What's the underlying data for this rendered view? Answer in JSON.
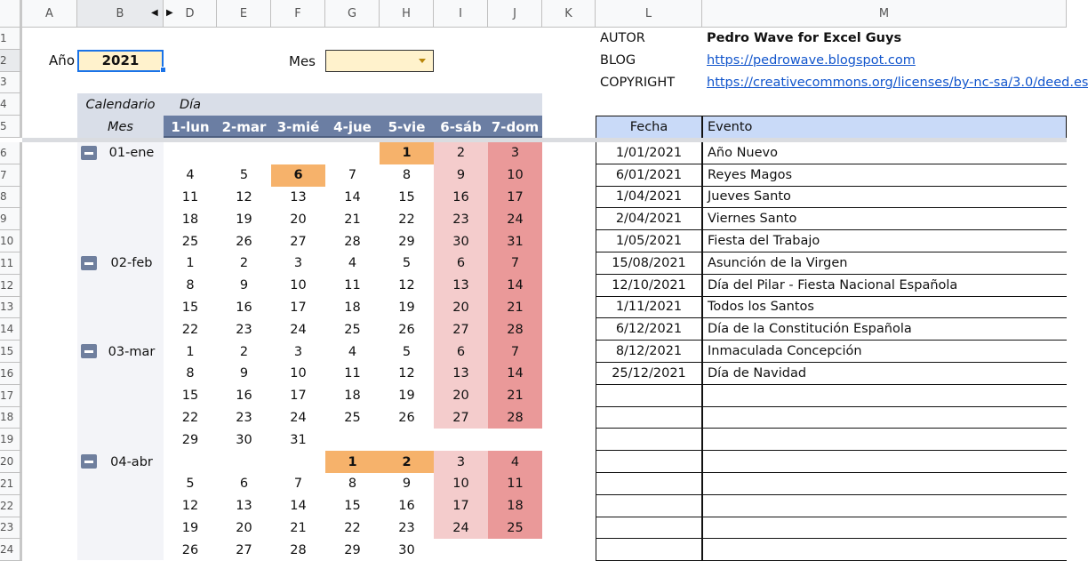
{
  "columns": [
    "A",
    "B",
    "D",
    "E",
    "F",
    "G",
    "H",
    "I",
    "J",
    "K",
    "L",
    "M"
  ],
  "rows": [
    "1",
    "2",
    "3",
    "4",
    "5",
    "6",
    "7",
    "8",
    "9",
    "10",
    "11",
    "12",
    "13",
    "14",
    "15",
    "16",
    "17",
    "18",
    "19",
    "20",
    "21",
    "22",
    "23",
    "24"
  ],
  "controls": {
    "year_label": "Año",
    "year_value": "2021",
    "month_label": "Mes",
    "month_value": ""
  },
  "calendar": {
    "header_left_top": "Calendario",
    "header_left_bottom": "Mes",
    "header_day": "Día",
    "weekdays": [
      "1-lun",
      "2-mar",
      "3-mié",
      "4-jue",
      "5-vie",
      "6-sáb",
      "7-dom"
    ],
    "rows": [
      {
        "month": "01-ene",
        "days": [
          "",
          "",
          "",
          "",
          "1",
          "2",
          "3"
        ],
        "holidays": [
          "1"
        ]
      },
      {
        "month": "",
        "days": [
          "4",
          "5",
          "6",
          "7",
          "8",
          "9",
          "10"
        ],
        "holidays": [
          "6"
        ]
      },
      {
        "month": "",
        "days": [
          "11",
          "12",
          "13",
          "14",
          "15",
          "16",
          "17"
        ],
        "holidays": []
      },
      {
        "month": "",
        "days": [
          "18",
          "19",
          "20",
          "21",
          "22",
          "23",
          "24"
        ],
        "holidays": []
      },
      {
        "month": "",
        "days": [
          "25",
          "26",
          "27",
          "28",
          "29",
          "30",
          "31"
        ],
        "holidays": []
      },
      {
        "month": "02-feb",
        "days": [
          "1",
          "2",
          "3",
          "4",
          "5",
          "6",
          "7"
        ],
        "holidays": []
      },
      {
        "month": "",
        "days": [
          "8",
          "9",
          "10",
          "11",
          "12",
          "13",
          "14"
        ],
        "holidays": []
      },
      {
        "month": "",
        "days": [
          "15",
          "16",
          "17",
          "18",
          "19",
          "20",
          "21"
        ],
        "holidays": []
      },
      {
        "month": "",
        "days": [
          "22",
          "23",
          "24",
          "25",
          "26",
          "27",
          "28"
        ],
        "holidays": []
      },
      {
        "month": "03-mar",
        "days": [
          "1",
          "2",
          "3",
          "4",
          "5",
          "6",
          "7"
        ],
        "holidays": []
      },
      {
        "month": "",
        "days": [
          "8",
          "9",
          "10",
          "11",
          "12",
          "13",
          "14"
        ],
        "holidays": []
      },
      {
        "month": "",
        "days": [
          "15",
          "16",
          "17",
          "18",
          "19",
          "20",
          "21"
        ],
        "holidays": []
      },
      {
        "month": "",
        "days": [
          "22",
          "23",
          "24",
          "25",
          "26",
          "27",
          "28"
        ],
        "holidays": []
      },
      {
        "month": "",
        "days": [
          "29",
          "30",
          "31",
          "",
          "",
          "",
          ""
        ],
        "holidays": []
      },
      {
        "month": "04-abr",
        "days": [
          "",
          "",
          "",
          "1",
          "2",
          "3",
          "4"
        ],
        "holidays": [
          "1",
          "2"
        ]
      },
      {
        "month": "",
        "days": [
          "5",
          "6",
          "7",
          "8",
          "9",
          "10",
          "11"
        ],
        "holidays": []
      },
      {
        "month": "",
        "days": [
          "12",
          "13",
          "14",
          "15",
          "16",
          "17",
          "18"
        ],
        "holidays": []
      },
      {
        "month": "",
        "days": [
          "19",
          "20",
          "21",
          "22",
          "23",
          "24",
          "25"
        ],
        "holidays": []
      },
      {
        "month": "",
        "days": [
          "26",
          "27",
          "28",
          "29",
          "30",
          "",
          ""
        ],
        "holidays": []
      }
    ]
  },
  "info": {
    "author_label": "AUTOR",
    "author_value": "Pedro Wave for Excel Guys",
    "blog_label": "BLOG",
    "blog_value": "https://pedrowave.blogspot.com",
    "copyright_label": "COPYRIGHT",
    "copyright_value": "https://creativecommons.org/licenses/by-nc-sa/3.0/deed.es"
  },
  "events": {
    "headers": [
      "Fecha",
      "Evento"
    ],
    "rows": [
      [
        "1/01/2021",
        "Año Nuevo"
      ],
      [
        "6/01/2021",
        "Reyes Magos"
      ],
      [
        "1/04/2021",
        "Jueves Santo"
      ],
      [
        "2/04/2021",
        "Viernes Santo"
      ],
      [
        "1/05/2021",
        "Fiesta del Trabajo"
      ],
      [
        "15/08/2021",
        "Asunción de la Virgen"
      ],
      [
        "12/10/2021",
        "Día del Pilar - Fiesta Nacional Española"
      ],
      [
        "1/11/2021",
        "Todos los Santos"
      ],
      [
        "6/12/2021",
        "Día de la Constitución Española"
      ],
      [
        "8/12/2021",
        "Inmaculada Concepción"
      ],
      [
        "25/12/2021",
        "Día de Navidad"
      ]
    ],
    "empty_rows": 8
  },
  "colors": {
    "holiday": "#f6b26b",
    "saturday": "#f4cccc",
    "sunday": "#ea9999",
    "weekday_header": "#6b7ea3",
    "header_band": "#d9dee8",
    "month_column": "#f3f4f8",
    "events_header": "#c9daf8",
    "input_fill": "#fff2cc"
  }
}
